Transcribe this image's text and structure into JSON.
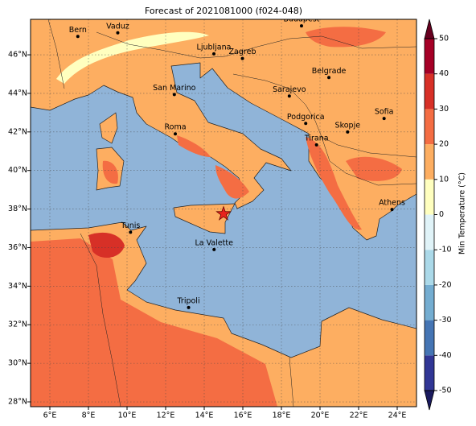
{
  "title": "Forecast of 2021081000 (f024-048)",
  "map": {
    "lon_range": [
      5,
      25
    ],
    "lat_range": [
      27.75,
      47.84
    ],
    "lon_ticks": [
      {
        "value": 6,
        "label": "6°E"
      },
      {
        "value": 8,
        "label": "8°E"
      },
      {
        "value": 10,
        "label": "10°E"
      },
      {
        "value": 12,
        "label": "12°E"
      },
      {
        "value": 14,
        "label": "14°E"
      },
      {
        "value": 16,
        "label": "16°E"
      },
      {
        "value": 18,
        "label": "18°E"
      },
      {
        "value": 20,
        "label": "20°E"
      },
      {
        "value": 22,
        "label": "22°E"
      },
      {
        "value": 24,
        "label": "24°E"
      }
    ],
    "lat_ticks": [
      {
        "value": 28,
        "label": "28°N"
      },
      {
        "value": 30,
        "label": "30°N"
      },
      {
        "value": 32,
        "label": "32°N"
      },
      {
        "value": 34,
        "label": "34°N"
      },
      {
        "value": 36,
        "label": "36°N"
      },
      {
        "value": 38,
        "label": "38°N"
      },
      {
        "value": 40,
        "label": "40°N"
      },
      {
        "value": 42,
        "label": "42°N"
      },
      {
        "value": 44,
        "label": "44°N"
      },
      {
        "value": 46,
        "label": "46°N"
      }
    ],
    "cities": [
      {
        "name": "Bern",
        "lon": 7.45,
        "lat": 46.95
      },
      {
        "name": "Vaduz",
        "lon": 9.52,
        "lat": 47.14
      },
      {
        "name": "Budapest",
        "lon": 19.04,
        "lat": 47.5
      },
      {
        "name": "Ljubljana",
        "lon": 14.5,
        "lat": 46.05
      },
      {
        "name": "Zagreb",
        "lon": 15.98,
        "lat": 45.81
      },
      {
        "name": "Belgrade",
        "lon": 20.46,
        "lat": 44.82
      },
      {
        "name": "San Marino",
        "lon": 12.45,
        "lat": 43.94
      },
      {
        "name": "Sarajevo",
        "lon": 18.41,
        "lat": 43.86
      },
      {
        "name": "Roma",
        "lon": 12.5,
        "lat": 41.9
      },
      {
        "name": "Podgorica",
        "lon": 19.26,
        "lat": 42.44
      },
      {
        "name": "Skopje",
        "lon": 21.43,
        "lat": 42.0
      },
      {
        "name": "Sofia",
        "lon": 23.32,
        "lat": 42.7
      },
      {
        "name": "Tirana",
        "lon": 19.82,
        "lat": 41.33
      },
      {
        "name": "Athens",
        "lon": 23.73,
        "lat": 37.98
      },
      {
        "name": "Tunis",
        "lon": 10.18,
        "lat": 36.8
      },
      {
        "name": "La Valette",
        "lon": 14.51,
        "lat": 35.9
      },
      {
        "name": "Tripoli",
        "lon": 13.19,
        "lat": 32.89
      }
    ],
    "marker": {
      "lon": 15.0,
      "lat": 37.75,
      "color": "#e8231c"
    }
  },
  "colorbar": {
    "label": "Min Temperature (°C)",
    "ticks": [
      -50,
      -40,
      -30,
      -20,
      -10,
      0,
      10,
      20,
      30,
      40,
      50
    ],
    "colors": [
      "#313695",
      "#4575b4",
      "#74add1",
      "#abd9e9",
      "#e0f3f8",
      "#ffffbf",
      "#fdae61",
      "#f46d43",
      "#d73027",
      "#a50026"
    ],
    "extend_colors": [
      "#1a1a5e",
      "#67001f"
    ]
  }
}
